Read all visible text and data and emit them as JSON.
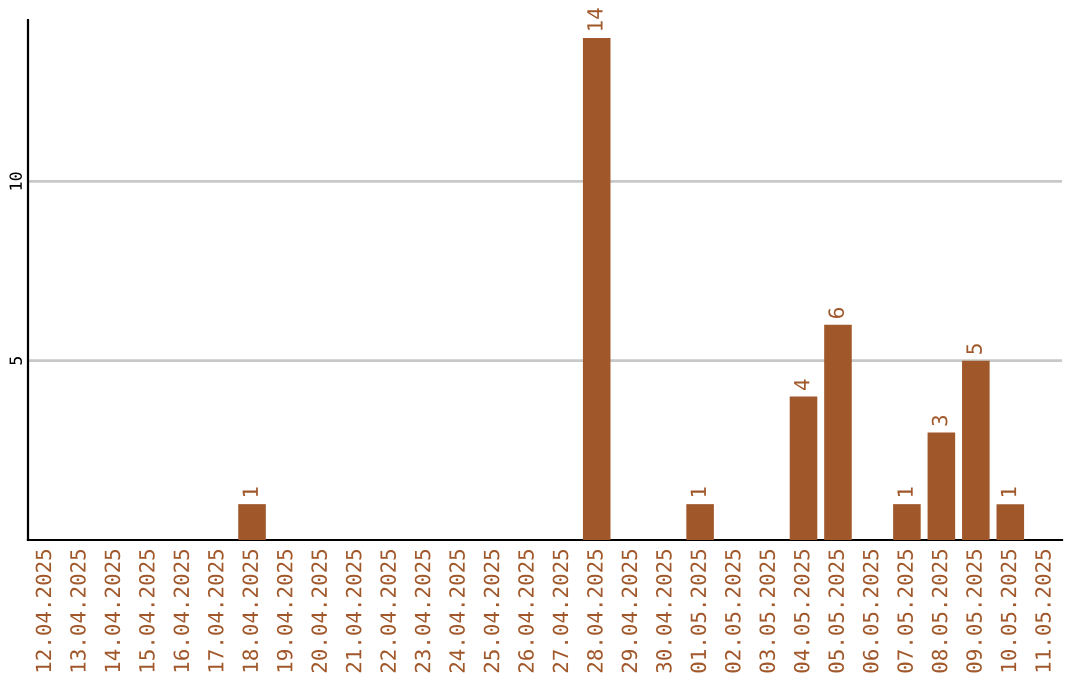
{
  "chart_data": {
    "type": "bar",
    "categories": [
      "12.04.2025",
      "13.04.2025",
      "14.04.2025",
      "15.04.2025",
      "16.04.2025",
      "17.04.2025",
      "18.04.2025",
      "19.04.2025",
      "20.04.2025",
      "21.04.2025",
      "22.04.2025",
      "23.04.2025",
      "24.04.2025",
      "25.04.2025",
      "26.04.2025",
      "27.04.2025",
      "28.04.2025",
      "29.04.2025",
      "30.04.2025",
      "01.05.2025",
      "02.05.2025",
      "03.05.2025",
      "04.05.2025",
      "05.05.2025",
      "06.05.2025",
      "07.05.2025",
      "08.05.2025",
      "09.05.2025",
      "10.05.2025",
      "11.05.2025"
    ],
    "values": [
      0,
      0,
      0,
      0,
      0,
      0,
      1,
      0,
      0,
      0,
      0,
      0,
      0,
      0,
      0,
      0,
      14,
      0,
      0,
      1,
      0,
      0,
      4,
      6,
      0,
      1,
      3,
      5,
      1,
      0
    ],
    "value_labels": [
      null,
      null,
      null,
      null,
      null,
      null,
      "1",
      null,
      null,
      null,
      null,
      null,
      null,
      null,
      null,
      null,
      "14",
      null,
      null,
      "1",
      null,
      null,
      "4",
      "6",
      null,
      "1",
      "3",
      "5",
      "1",
      null
    ],
    "color": "#a0572a",
    "ylim": [
      0,
      14.5
    ],
    "yticks": [
      5,
      10
    ],
    "grid": "y"
  }
}
